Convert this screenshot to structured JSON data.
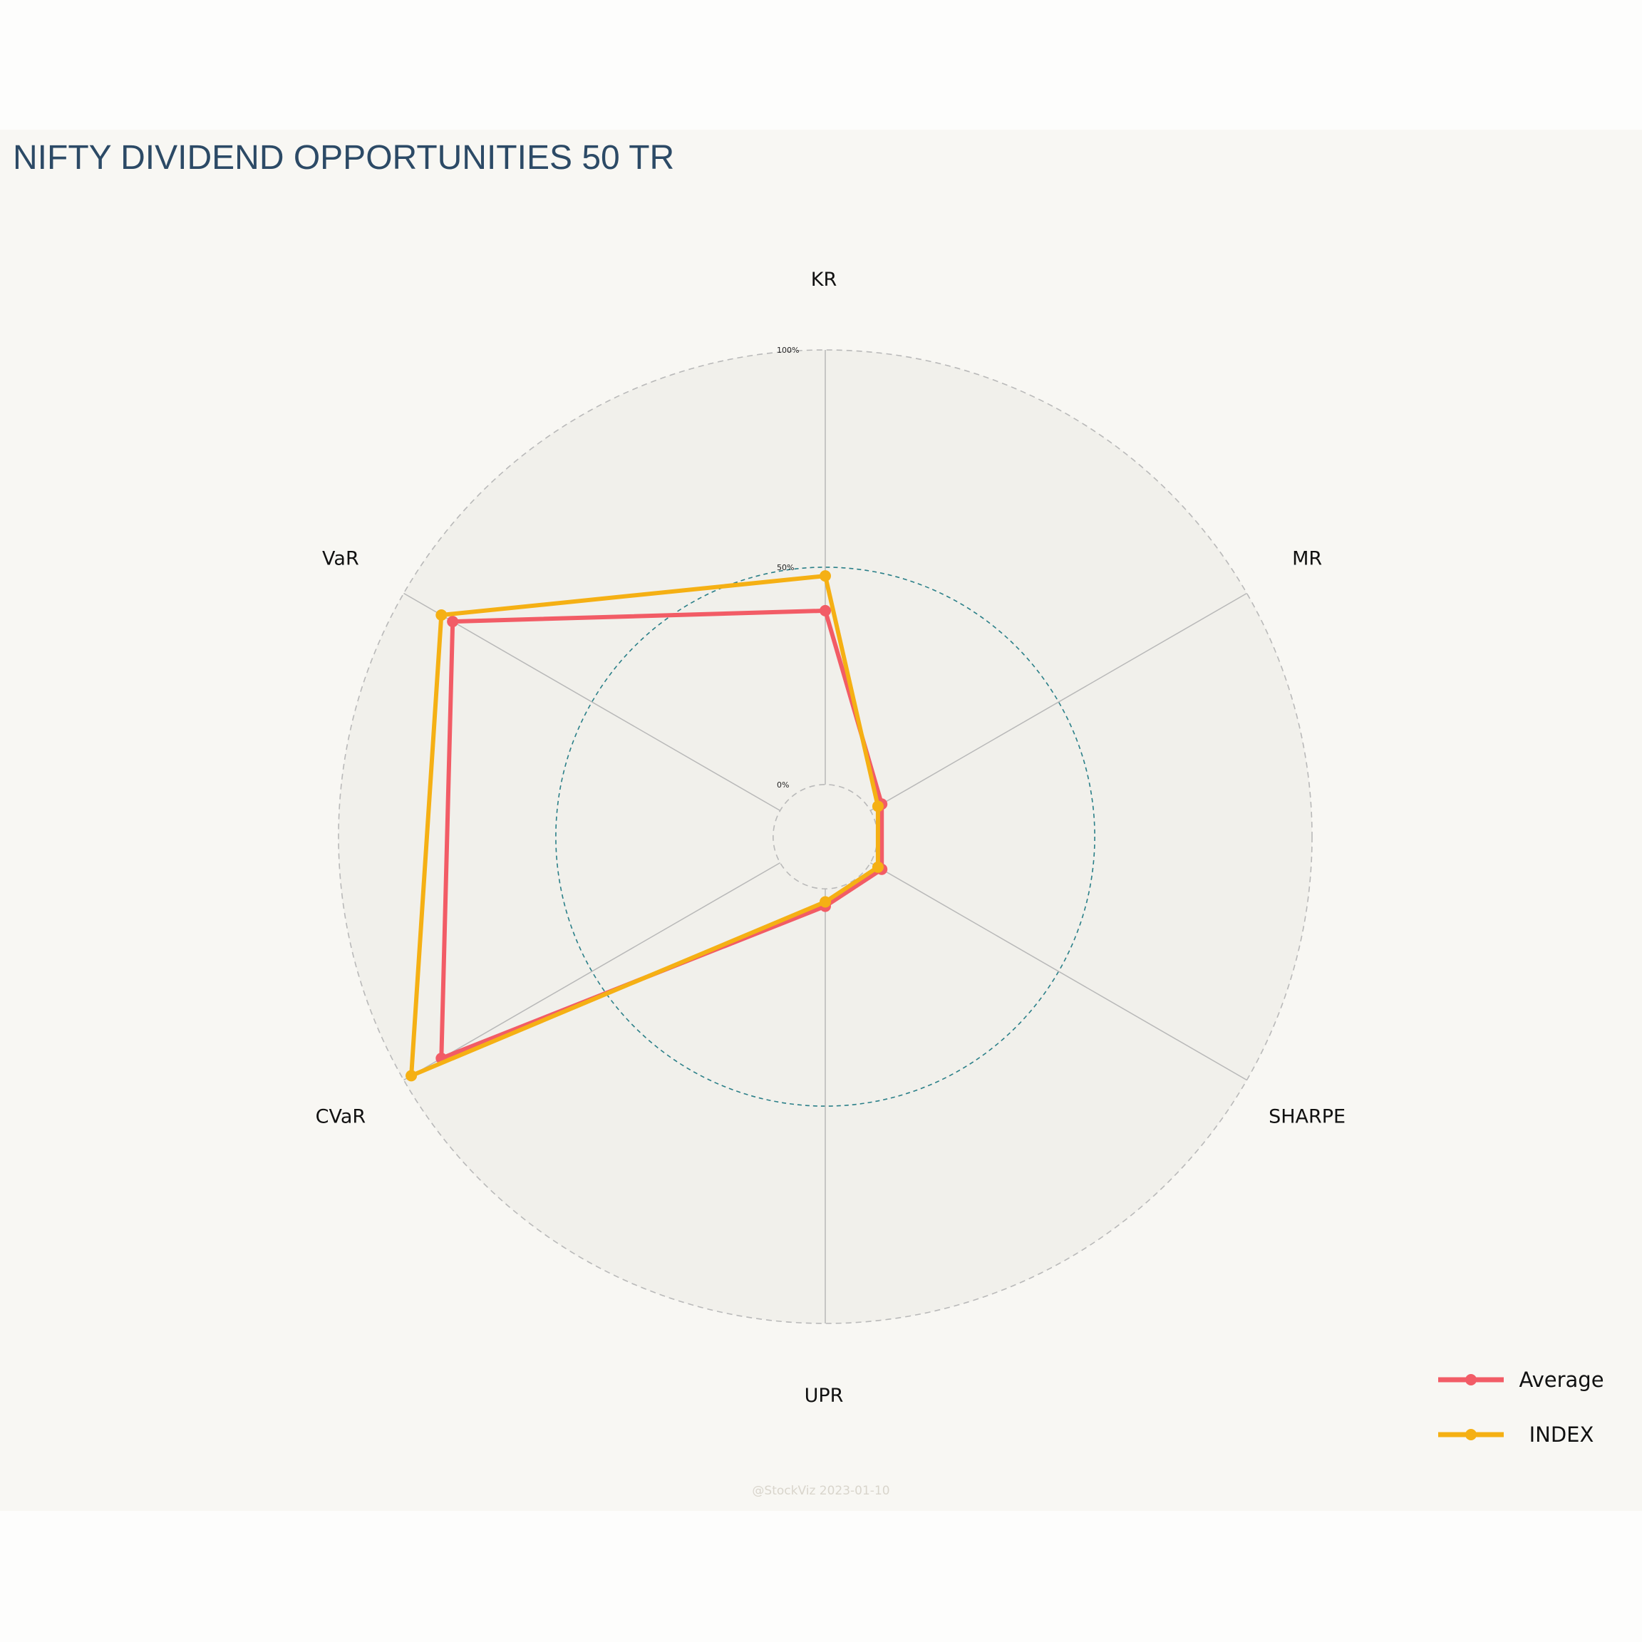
{
  "chart_data": {
    "type": "radar",
    "title": "NIFTY DIVIDEND OPPORTUNITIES 50 TR",
    "axes": [
      "KR",
      "MR",
      "SHARPE",
      "UPR",
      "CVaR",
      "VaR"
    ],
    "radial_ticks": [
      {
        "value": 0,
        "label": "0%"
      },
      {
        "value": 50,
        "label": "50%"
      },
      {
        "value": 100,
        "label": "100%"
      }
    ],
    "rlim": [
      -12,
      100
    ],
    "series": [
      {
        "name": "Average",
        "color": "#f25c66",
        "values": [
          40,
          3,
          3,
          4,
          90,
          87
        ]
      },
      {
        "name": "INDEX",
        "color": "#f5b014",
        "values": [
          48,
          2,
          2,
          3,
          98,
          90
        ]
      }
    ],
    "grid": true,
    "legend_position": "bottom-right"
  },
  "credit": "@StockViz 2023-01-10"
}
